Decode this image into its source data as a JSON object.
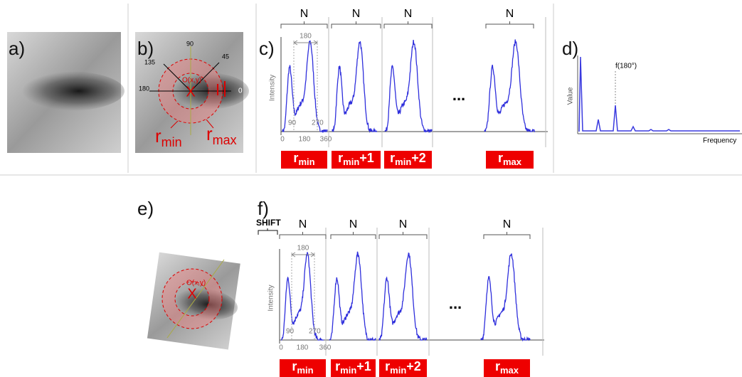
{
  "panel_a": {
    "label": "a)"
  },
  "panel_b": {
    "label": "b)",
    "angles": [
      "90",
      "45",
      "135",
      "180",
      "0"
    ],
    "center": "O(x,y)",
    "marker": "X",
    "radii": [
      {
        "base": "r",
        "sub": "min"
      },
      {
        "base": "r",
        "sub": "max"
      }
    ]
  },
  "panel_c": {
    "label": "c)",
    "y_axis": "Intensity",
    "span": "180",
    "angle_ticks": [
      "90",
      "270"
    ],
    "x_ticks": [
      "0",
      "180",
      "360"
    ],
    "ellipsis": "...",
    "segments": [
      {
        "bracket": "N",
        "tag": {
          "base": "r",
          "sub": "min"
        }
      },
      {
        "bracket": "N",
        "tag": {
          "base": "r",
          "sub": "min",
          "suffix": "+1"
        }
      },
      {
        "bracket": "N",
        "tag": {
          "base": "r",
          "sub": "min",
          "suffix": "+2"
        }
      },
      {
        "bracket": "N",
        "tag": {
          "base": "r",
          "sub": "max"
        }
      }
    ]
  },
  "panel_d": {
    "label": "d)",
    "peak": "f(180°)",
    "y_axis": "Value",
    "x_axis": "Frequency"
  },
  "panel_e": {
    "label": "e)",
    "center": "O(x,y)",
    "marker": "X"
  },
  "panel_f": {
    "label": "f)",
    "shift": "SHIFT",
    "y_axis": "Intensity",
    "span": "180",
    "angle_ticks": [
      "90",
      "270"
    ],
    "x_ticks": [
      "0",
      "180",
      "360"
    ],
    "ellipsis": "...",
    "segments": [
      {
        "bracket": "N",
        "tag": {
          "base": "r",
          "sub": "min"
        }
      },
      {
        "bracket": "N",
        "tag": {
          "base": "r",
          "sub": "min",
          "suffix": "+1"
        }
      },
      {
        "bracket": "N",
        "tag": {
          "base": "r",
          "sub": "min",
          "suffix": "+2"
        }
      },
      {
        "bracket": "N",
        "tag": {
          "base": "r",
          "sub": "max"
        }
      }
    ]
  }
}
